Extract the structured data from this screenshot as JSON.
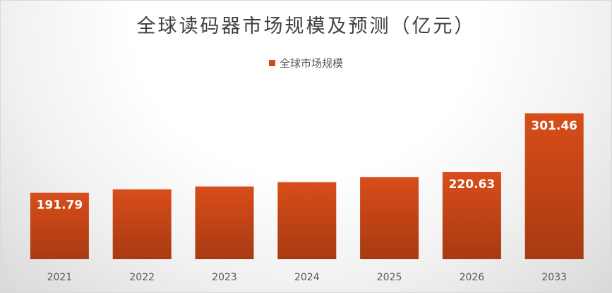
{
  "chart_data": {
    "type": "bar",
    "title": "全球读码器市场规模及预测（亿元）",
    "categories": [
      "2021",
      "2022",
      "2023",
      "2024",
      "2025",
      "2026",
      "2033"
    ],
    "series": [
      {
        "name": "全球市场规模",
        "values": [
          191.79,
          196.5,
          200.5,
          206.5,
          213.5,
          220.63,
          301.46
        ],
        "data_labels": [
          "191.79",
          "",
          "",
          "",
          "",
          "220.63",
          "301.46"
        ]
      }
    ],
    "ylim": [
      0,
      320
    ],
    "grid": false,
    "legend": "top-center",
    "colors": {
      "bar": "#d04a1a",
      "bar_dark": "#a83a12"
    }
  }
}
